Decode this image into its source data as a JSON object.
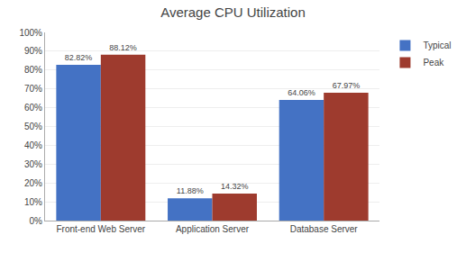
{
  "chart_data": {
    "type": "bar",
    "title": "Average CPU Utilization",
    "categories": [
      "Front-end Web Server",
      "Application Server",
      "Database Server"
    ],
    "series": [
      {
        "name": "Typical",
        "color": "#4472C4",
        "values": [
          82.82,
          11.88,
          64.06
        ],
        "value_labels": [
          "82.82%",
          "11.88%",
          "64.06%"
        ]
      },
      {
        "name": "Peak",
        "color": "#9E3B2E",
        "values": [
          88.12,
          14.32,
          67.97
        ],
        "value_labels": [
          "88.12%",
          "14.32%",
          "67.97%"
        ]
      }
    ],
    "ylim": [
      0,
      100
    ],
    "yticks": [
      {
        "value": 0,
        "label": "0%"
      },
      {
        "value": 10,
        "label": "10%"
      },
      {
        "value": 20,
        "label": "20%"
      },
      {
        "value": 30,
        "label": "30%"
      },
      {
        "value": 40,
        "label": "40%"
      },
      {
        "value": 50,
        "label": "50%"
      },
      {
        "value": 60,
        "label": "60%"
      },
      {
        "value": 70,
        "label": "70%"
      },
      {
        "value": 80,
        "label": "80%"
      },
      {
        "value": 90,
        "label": "90%"
      },
      {
        "value": 100,
        "label": "100%"
      }
    ],
    "grid": true,
    "legend": "upper right",
    "data_labels": true
  }
}
